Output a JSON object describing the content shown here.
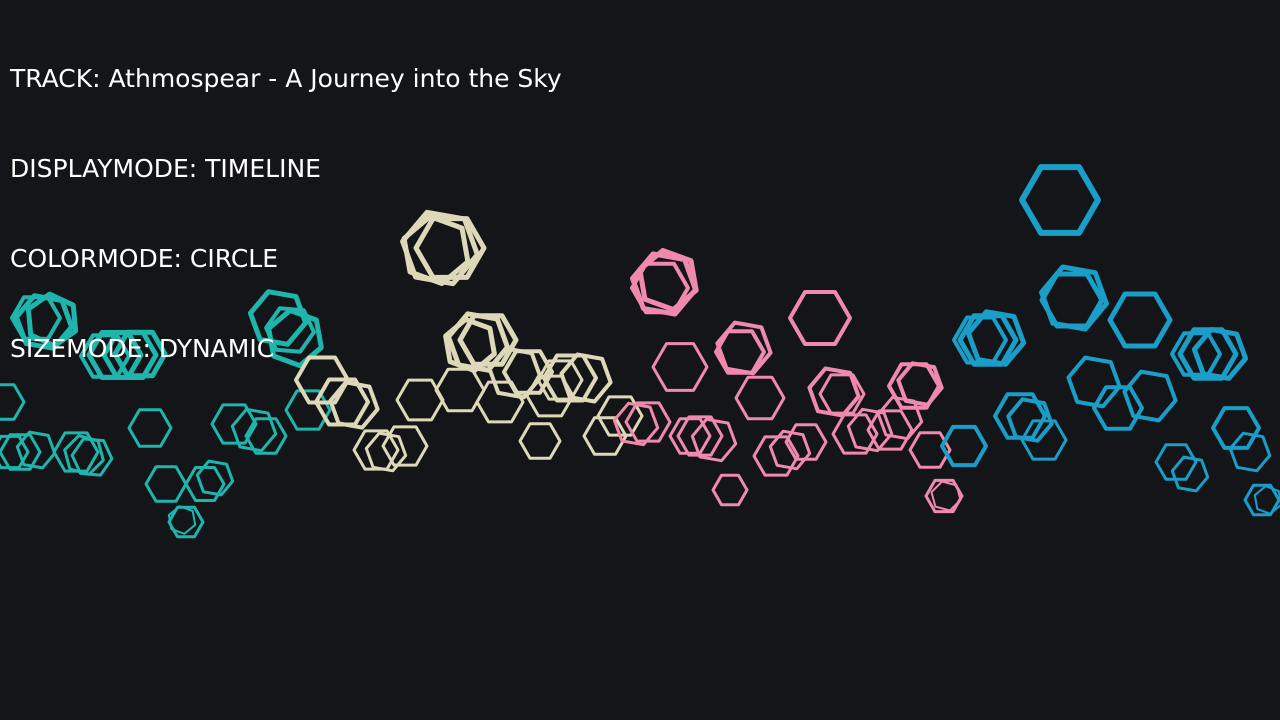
{
  "hud": {
    "track": "TRACK: Athmospear - A Journey into the Sky",
    "displaymode": "DISPLAYMODE: TIMELINE",
    "colormode": "COLORMODE: CIRCLE",
    "sizemode": "SIZEMODE: DYNAMIC"
  },
  "colors": {
    "background": "#141518",
    "hud_text": "#ffffff",
    "teal": "#1fb5ad",
    "cream": "#ddd9b8",
    "pink": "#f08aac",
    "blue": "#1a9dc7"
  }
}
